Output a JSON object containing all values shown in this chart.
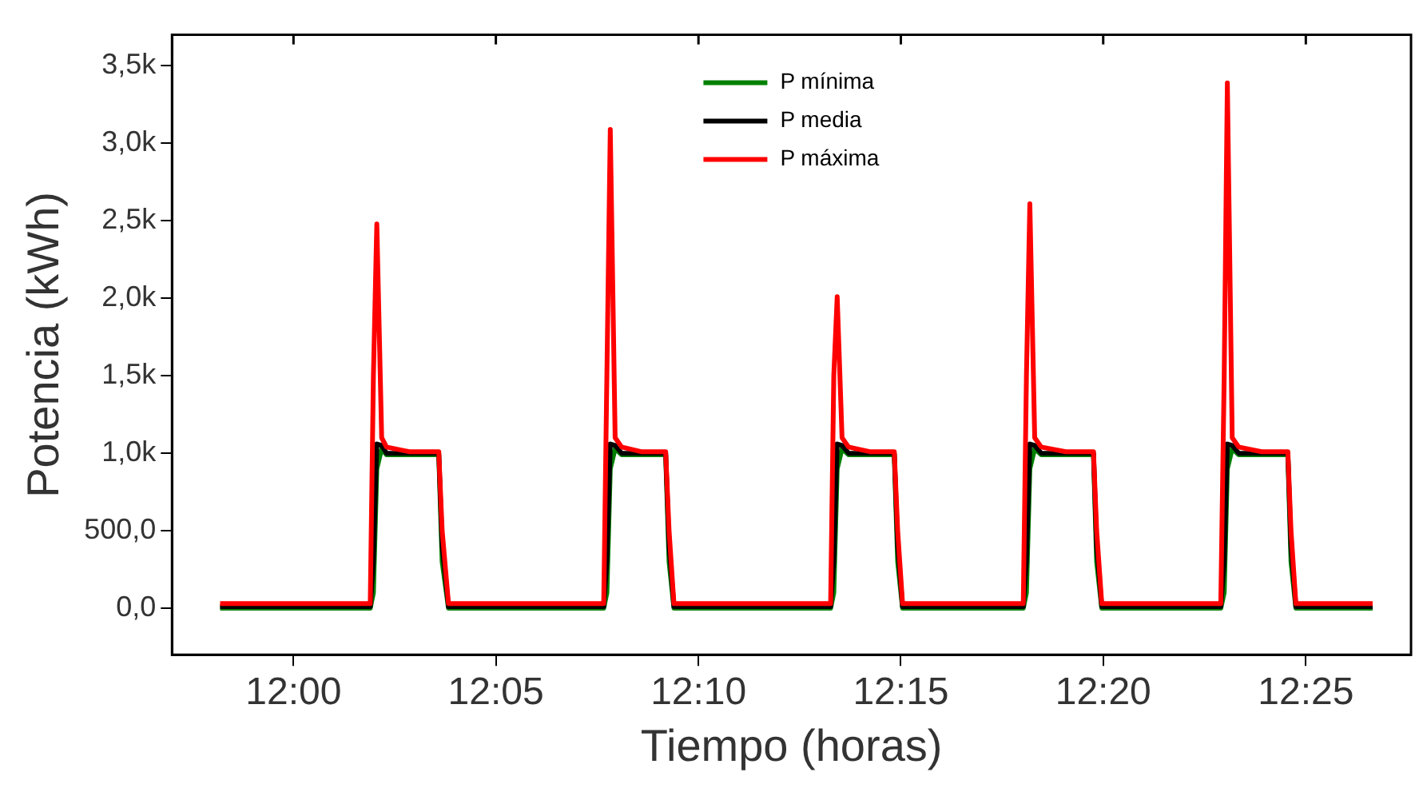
{
  "chart_data": {
    "type": "line",
    "xlabel": "Tiempo (horas)",
    "ylabel": "Potencia (kWh)",
    "x": [
      11.9698,
      11.9953,
      12.0316,
      12.0329,
      12.0343,
      12.0363,
      12.0383,
      12.0477,
      12.0598,
      12.0612,
      12.0638,
      12.0894,
      12.1277,
      12.129,
      12.1304,
      12.1324,
      12.1351,
      12.1431,
      12.1532,
      12.1546,
      12.1566,
      12.1835,
      12.2211,
      12.2224,
      12.2238,
      12.2258,
      12.2285,
      12.2372,
      12.2473,
      12.2487,
      12.2507,
      12.2776,
      12.3004,
      12.3017,
      12.3031,
      12.3051,
      12.3078,
      12.3179,
      12.3293,
      12.3306,
      12.3327,
      12.3582,
      12.3817,
      12.3831,
      12.3844,
      12.3864,
      12.3891,
      12.3985,
      12.4093,
      12.4106,
      12.4126,
      12.4442
    ],
    "series": [
      {
        "name": "P mínima",
        "color": "#008000",
        "values": [
          0,
          0,
          0,
          100,
          900,
          1030,
          990,
          990,
          990,
          300,
          0,
          0,
          0,
          100,
          900,
          1030,
          990,
          990,
          990,
          300,
          0,
          0,
          0,
          100,
          900,
          1030,
          990,
          990,
          990,
          300,
          0,
          0,
          0,
          100,
          900,
          1030,
          990,
          990,
          990,
          300,
          0,
          0,
          0,
          100,
          900,
          1030,
          990,
          990,
          990,
          300,
          0,
          0
        ]
      },
      {
        "name": "P media",
        "color": "#000000",
        "values": [
          10,
          10,
          10,
          300,
          1060,
          1050,
          1000,
          1000,
          1000,
          400,
          10,
          10,
          10,
          300,
          1060,
          1050,
          1000,
          1000,
          1000,
          400,
          10,
          10,
          10,
          300,
          1060,
          1050,
          1000,
          1000,
          1000,
          400,
          10,
          10,
          10,
          300,
          1060,
          1050,
          1000,
          1000,
          1000,
          400,
          10,
          10,
          10,
          300,
          1060,
          1050,
          1000,
          1000,
          1000,
          400,
          10,
          10
        ]
      },
      {
        "name": "P máxima",
        "color": "#ff0000",
        "values": [
          30,
          30,
          30,
          1500,
          2480,
          1100,
          1040,
          1010,
          1010,
          500,
          30,
          30,
          30,
          1500,
          3090,
          1100,
          1040,
          1010,
          1010,
          500,
          30,
          30,
          30,
          1500,
          2010,
          1100,
          1040,
          1010,
          1010,
          500,
          30,
          30,
          30,
          1500,
          2610,
          1100,
          1040,
          1010,
          1010,
          500,
          30,
          30,
          30,
          1500,
          3390,
          1100,
          1040,
          1010,
          1010,
          500,
          30,
          30
        ]
      }
    ],
    "xlim": [
      11.95,
      12.46
    ],
    "xticks": [
      {
        "value": 12,
        "label": "12:00"
      },
      {
        "value": 12.0833,
        "label": "12:05"
      },
      {
        "value": 12.1667,
        "label": "12:10"
      },
      {
        "value": 12.25,
        "label": "12:15"
      },
      {
        "value": 12.3333,
        "label": "12:20"
      },
      {
        "value": 12.4167,
        "label": "12:25"
      }
    ],
    "ylim": [
      -300,
      3700
    ],
    "yticks": [
      {
        "value": 0,
        "label": "0,0"
      },
      {
        "value": 500,
        "label": "500,0"
      },
      {
        "value": 1000,
        "label": "1,0k"
      },
      {
        "value": 1500,
        "label": "1,5k"
      },
      {
        "value": 2000,
        "label": "2,0k"
      },
      {
        "value": 2500,
        "label": "2,5k"
      },
      {
        "value": 3000,
        "label": "3,0k"
      },
      {
        "value": 3500,
        "label": "3,5k"
      }
    ],
    "grid": false,
    "legend": "top",
    "marker": "none",
    "line_style": "solid"
  }
}
